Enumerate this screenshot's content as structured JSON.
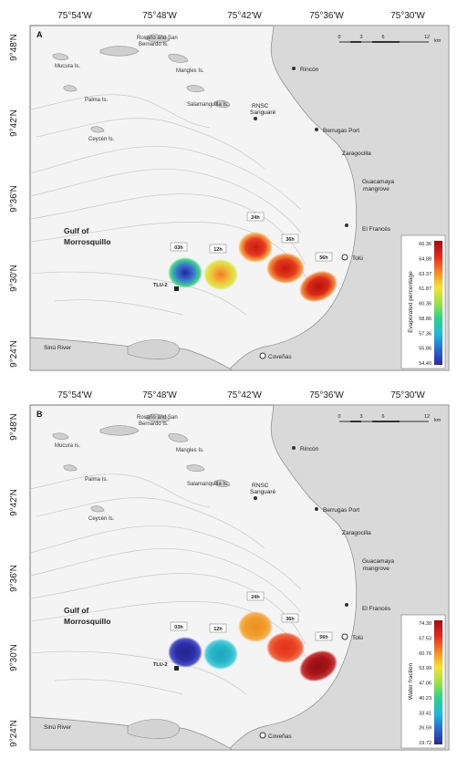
{
  "longitude_labels": [
    "75°54'W",
    "75°48'W",
    "75°42'W",
    "75°36'W",
    "75°30'W"
  ],
  "latitude_labels": [
    "9°48'N",
    "9°42'N",
    "9°36'N",
    "9°30'N",
    "9°24'N"
  ],
  "scale_bar": {
    "ticks": [
      "0",
      "3",
      "6",
      "12"
    ],
    "unit": "km"
  },
  "places": {
    "rosario_1": "Rosario and San",
    "rosario_2": "Bernardo Is.",
    "mucura": "Mucura Is.",
    "mangles": "Mangles Is.",
    "palma": "Palma Is.",
    "salamanquilla": "Salamanquilla Is.",
    "ceycen": "Ceycén Is.",
    "rincon": "Rincón",
    "rnsc_1": "RNSC",
    "rnsc_2": "Sanguaré",
    "berrugas": "Berrugas Port",
    "zaragocilla": "Zaragocilla",
    "guacamaya_1": "Guacamaya",
    "guacamaya_2": "mangrove",
    "el_frances": "El Francés",
    "tolu": "Tolú",
    "covenas": "Coveñas",
    "sinu": "Sinú River",
    "gulf_1": "Gulf of",
    "gulf_2": "Morrosquillo",
    "station": "TLU-2"
  },
  "time_labels": [
    "03h",
    "12h",
    "24h",
    "36h",
    "56h"
  ],
  "panels": [
    {
      "label": "A",
      "colorbar_title": "Evaporated percentage",
      "colorbar_ticks": [
        "66.36",
        "64.88",
        "63.37",
        "61.87",
        "60.36",
        "58.86",
        "57.36",
        "55.86",
        "54.40"
      ],
      "plume_colors": [
        "#3a7fd0",
        "#f2c23a",
        "#e83a22",
        "#e23b1c",
        "#d92a1a"
      ],
      "plume_core_colors": [
        "#25259b",
        "#f07a2a",
        "#c41a12",
        "#c8160f",
        "#b5120c"
      ],
      "plume_edge_colors": [
        "#2fcf7a",
        "#d8e83a",
        "#f2a030",
        "#f08a2a",
        "#ee7a24"
      ]
    },
    {
      "label": "B",
      "colorbar_title": "Water fraction",
      "colorbar_ticks": [
        "74.30",
        "67.53",
        "60.76",
        "53.99",
        "47.06",
        "40.23",
        "33.41",
        "26.59",
        "19.72"
      ],
      "plume_colors": [
        "#2b2ea8",
        "#26b7c8",
        "#f09a2a",
        "#e94424",
        "#a8161a"
      ],
      "plume_core_colors": [
        "#232590",
        "#1fa5bb",
        "#ee8e22",
        "#e0321c",
        "#8e0f14"
      ],
      "plume_edge_colors": [
        "#3a3fc0",
        "#3bc8d6",
        "#f4a83a",
        "#ee5a30",
        "#c42020"
      ]
    }
  ],
  "colorbar_colors": [
    "#9b0f12",
    "#e22a1c",
    "#f2872a",
    "#f4e23a",
    "#9fe04a",
    "#2fd08a",
    "#25b8d8",
    "#2a6ad0",
    "#2b2a9a"
  ]
}
